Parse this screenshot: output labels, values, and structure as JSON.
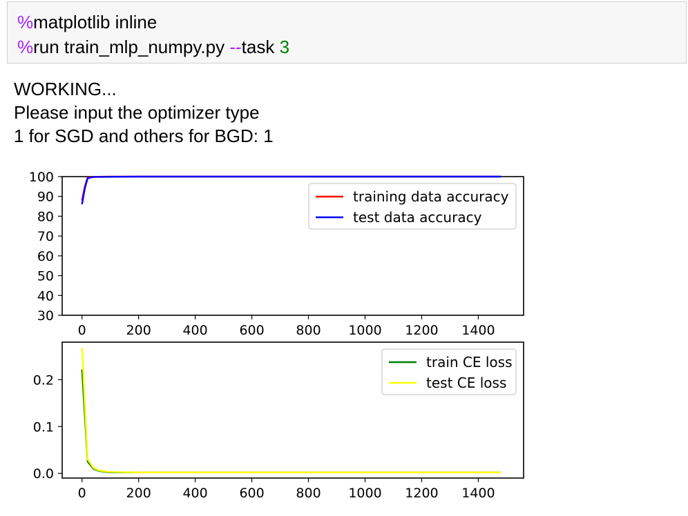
{
  "code_cell": {
    "line1": {
      "prefix": "%",
      "rest": "matplotlib inline"
    },
    "line2": {
      "prefix": "%",
      "cmd": "run train_mlp_numpy.py ",
      "flag": "--",
      "flag_name": "task ",
      "arg": "3"
    }
  },
  "output": {
    "lines": [
      "WORKING...",
      "Please input the optimizer type",
      "1 for SGD and others for BGD: 1"
    ]
  },
  "colors": {
    "training_acc": "#ff0000",
    "test_acc": "#0000ff",
    "train_loss": "#008000",
    "test_loss": "#ffff00"
  },
  "chart_data": [
    {
      "type": "line",
      "title": "",
      "xlabel": "",
      "ylabel": "",
      "xlim": [
        -70,
        1560
      ],
      "ylim": [
        30,
        100
      ],
      "xticks": [
        0,
        200,
        400,
        600,
        800,
        1000,
        1200,
        1400
      ],
      "yticks": [
        30,
        40,
        50,
        60,
        70,
        80,
        90,
        100
      ],
      "grid": false,
      "legend": "upper right",
      "series": [
        {
          "name": "training data accuracy",
          "color": "#ff0000",
          "x": [
            0,
            10,
            20,
            40,
            100,
            200,
            400,
            600,
            800,
            1000,
            1200,
            1480
          ],
          "y": [
            88,
            95,
            99.5,
            99.9,
            100,
            100,
            100,
            100,
            100,
            100,
            100,
            100
          ]
        },
        {
          "name": "test data accuracy",
          "color": "#0000ff",
          "x": [
            0,
            10,
            20,
            40,
            100,
            200,
            400,
            600,
            800,
            1000,
            1200,
            1480
          ],
          "y": [
            86,
            94,
            99.2,
            99.8,
            99.9,
            100,
            100,
            100,
            100,
            100,
            100,
            100
          ]
        }
      ]
    },
    {
      "type": "line",
      "title": "",
      "xlabel": "",
      "ylabel": "",
      "xlim": [
        -70,
        1560
      ],
      "ylim": [
        -0.01,
        0.28
      ],
      "xticks": [
        0,
        200,
        400,
        600,
        800,
        1000,
        1200,
        1400
      ],
      "yticks": [
        0.0,
        0.1,
        0.2
      ],
      "ytick_labels": [
        "0.0",
        "0.1",
        "0.2"
      ],
      "grid": false,
      "legend": "upper right",
      "series": [
        {
          "name": "train CE loss",
          "color": "#008000",
          "x": [
            0,
            20,
            40,
            60,
            100,
            200,
            400,
            800,
            1200,
            1480
          ],
          "y": [
            0.222,
            0.025,
            0.01,
            0.005,
            0.002,
            0.002,
            0.002,
            0.002,
            0.002,
            0.002
          ]
        },
        {
          "name": "test CE loss",
          "color": "#ffff00",
          "x": [
            0,
            20,
            40,
            60,
            100,
            200,
            400,
            800,
            1200,
            1480
          ],
          "y": [
            0.268,
            0.03,
            0.012,
            0.006,
            0.003,
            0.002,
            0.002,
            0.002,
            0.002,
            0.002
          ]
        }
      ]
    }
  ]
}
